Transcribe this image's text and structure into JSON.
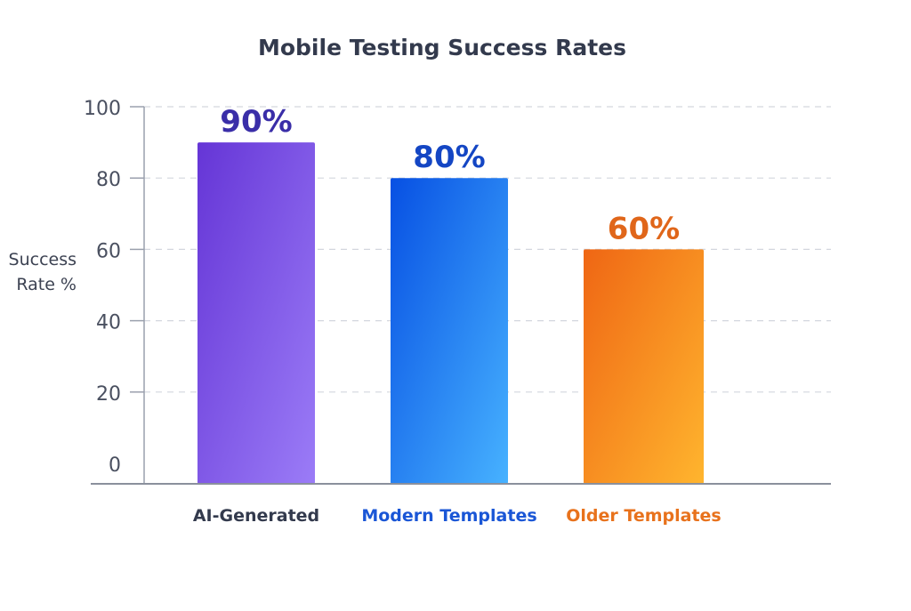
{
  "chart_data": {
    "type": "bar",
    "title": "Mobile Testing Success Rates",
    "ylabel": "Success Rate %",
    "xlabel": "",
    "ylim": [
      0,
      100
    ],
    "yticks": [
      0,
      20,
      40,
      60,
      80,
      100
    ],
    "grid": true,
    "categories": [
      "AI-Generated",
      "Modern Templates",
      "Older Templates"
    ],
    "values": [
      90,
      80,
      60
    ],
    "data_labels": [
      "90%",
      "80%",
      "60%"
    ],
    "category_label_colors": [
      "#333a4d",
      "#1a56d6",
      "#e8721c"
    ],
    "data_label_colors": [
      "#3a2ea8",
      "#1446c4",
      "#e0661a"
    ],
    "bar_gradients": [
      [
        "#6535d6",
        "#9b7cf7"
      ],
      [
        "#0750e3",
        "#47b2ff"
      ],
      [
        "#ef6614",
        "#ffb52e"
      ]
    ]
  }
}
